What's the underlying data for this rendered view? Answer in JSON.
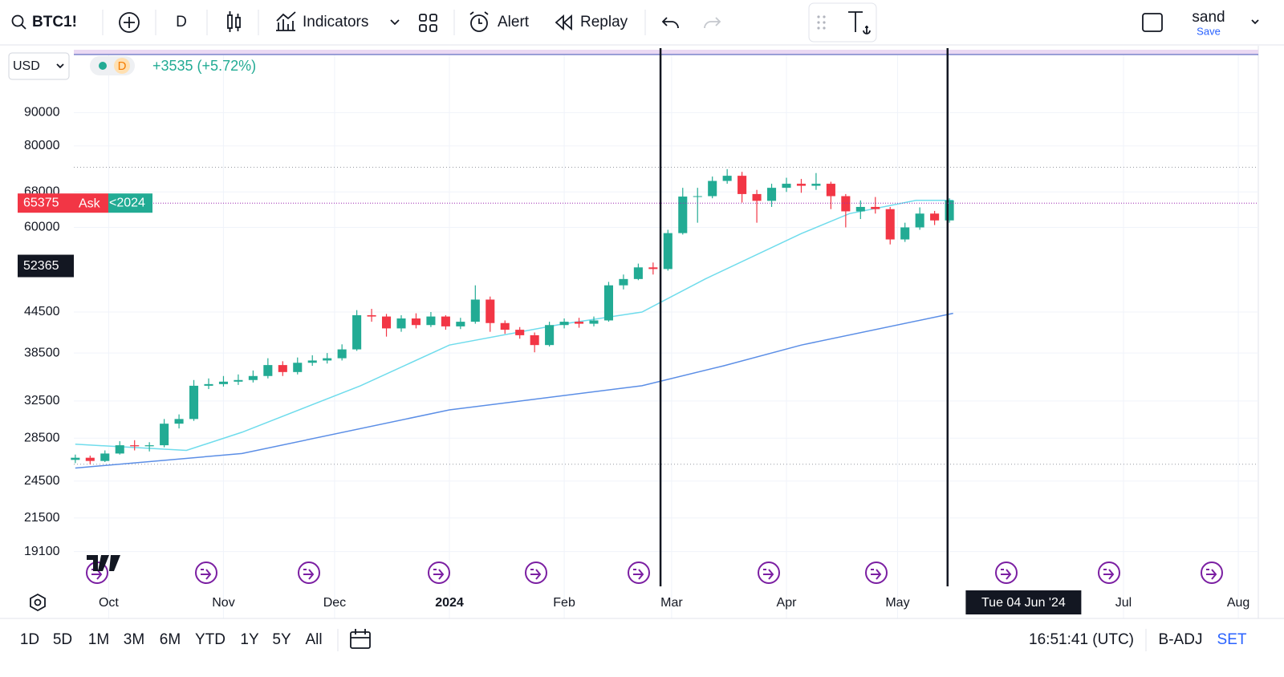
{
  "toolbar": {
    "symbol": "BTC1!",
    "interval": "D",
    "indicators": "Indicators",
    "alert": "Alert",
    "replay": "Replay",
    "user": "sand",
    "save": "Save"
  },
  "legend": {
    "currency": "USD",
    "badge": "D",
    "change": "+3535 (+5.72%)"
  },
  "chart_data": {
    "type": "candlestick",
    "log_scale": true,
    "grid": true,
    "up_color": "#22ab94",
    "down_color": "#f23645",
    "ylim": [
      16700,
      113000
    ],
    "yticks": [
      90000,
      80000,
      68000,
      60000,
      44500,
      38500,
      32500,
      28500,
      24500,
      21500,
      19100
    ],
    "xlim": [
      -0.4,
      319.4
    ],
    "xticks": [
      {
        "value": 9,
        "label": "Oct"
      },
      {
        "value": 40,
        "label": "Nov"
      },
      {
        "value": 70,
        "label": "Dec"
      },
      {
        "value": 101,
        "label": "2024"
      },
      {
        "value": 132,
        "label": "Feb"
      },
      {
        "value": 161,
        "label": "Mar"
      },
      {
        "value": 192,
        "label": "Apr"
      },
      {
        "value": 222,
        "label": "May"
      },
      {
        "value": 283,
        "label": "Jul"
      },
      {
        "value": 314,
        "label": "Aug"
      }
    ],
    "x": [
      0,
      4,
      8,
      12,
      16,
      20,
      24,
      28,
      32,
      36,
      40,
      44,
      48,
      52,
      56,
      60,
      64,
      68,
      72,
      76,
      80,
      84,
      88,
      92,
      96,
      100,
      104,
      108,
      112,
      116,
      120,
      124,
      128,
      132,
      136,
      140,
      144,
      148,
      152,
      156,
      160,
      164,
      168,
      172,
      176,
      180,
      184,
      188,
      192,
      196,
      200,
      204,
      208,
      212,
      216,
      220,
      224,
      228,
      232,
      236
    ],
    "ohlc": [
      [
        26400,
        26900,
        26100,
        26600
      ],
      [
        26600,
        26800,
        26000,
        26300
      ],
      [
        26300,
        27300,
        26200,
        27000
      ],
      [
        27000,
        28200,
        26900,
        27800
      ],
      [
        27800,
        28300,
        27300,
        27700
      ],
      [
        27700,
        28100,
        27200,
        27800
      ],
      [
        27800,
        30500,
        27600,
        30000
      ],
      [
        30000,
        31000,
        29500,
        30500
      ],
      [
        30500,
        35000,
        30300,
        34300
      ],
      [
        34300,
        35200,
        33900,
        34500
      ],
      [
        34500,
        35500,
        34200,
        34800
      ],
      [
        34800,
        35700,
        34400,
        35000
      ],
      [
        35000,
        36200,
        34700,
        35500
      ],
      [
        35500,
        37800,
        35200,
        36900
      ],
      [
        36900,
        37400,
        35500,
        36000
      ],
      [
        36000,
        37900,
        35700,
        37200
      ],
      [
        37200,
        38200,
        36800,
        37500
      ],
      [
        37500,
        38500,
        37100,
        37800
      ],
      [
        37800,
        39700,
        37500,
        39000
      ],
      [
        39000,
        44800,
        38800,
        44000
      ],
      [
        44000,
        45000,
        43000,
        43800
      ],
      [
        43800,
        44200,
        40800,
        42000
      ],
      [
        42000,
        44000,
        41500,
        43500
      ],
      [
        43500,
        44300,
        42000,
        42500
      ],
      [
        42500,
        44500,
        42200,
        43800
      ],
      [
        43800,
        44000,
        41800,
        42300
      ],
      [
        42300,
        43600,
        41900,
        43000
      ],
      [
        43000,
        48900,
        42700,
        46500
      ],
      [
        46500,
        47000,
        41500,
        42800
      ],
      [
        42800,
        43200,
        41200,
        41800
      ],
      [
        41800,
        42200,
        40500,
        41000
      ],
      [
        41000,
        41400,
        38600,
        39600
      ],
      [
        39600,
        43000,
        39400,
        42500
      ],
      [
        42500,
        43500,
        42000,
        43000
      ],
      [
        43000,
        43600,
        42100,
        42700
      ],
      [
        42700,
        43800,
        42300,
        43200
      ],
      [
        43200,
        49500,
        43000,
        48900
      ],
      [
        48900,
        50800,
        48200,
        50000
      ],
      [
        50000,
        52800,
        49800,
        52100
      ],
      [
        52100,
        53000,
        50800,
        51800
      ],
      [
        51800,
        59500,
        51500,
        58800
      ],
      [
        58800,
        69000,
        58500,
        66900
      ],
      [
        66900,
        69000,
        61000,
        67000
      ],
      [
        67000,
        71800,
        66500,
        70700
      ],
      [
        70700,
        73700,
        70000,
        72000
      ],
      [
        72000,
        73000,
        65500,
        67500
      ],
      [
        67500,
        68500,
        61000,
        65900
      ],
      [
        65900,
        70000,
        64500,
        69000
      ],
      [
        69000,
        71500,
        68000,
        70000
      ],
      [
        70000,
        71200,
        67800,
        69500
      ],
      [
        69500,
        72700,
        68500,
        70000
      ],
      [
        70000,
        70500,
        64000,
        67000
      ],
      [
        67000,
        67500,
        60000,
        63500
      ],
      [
        63500,
        66000,
        61800,
        64500
      ],
      [
        64500,
        66800,
        63000,
        64000
      ],
      [
        64000,
        64500,
        56500,
        57500
      ],
      [
        57500,
        61000,
        57000,
        60000
      ],
      [
        60000,
        64400,
        59500,
        63000
      ],
      [
        63000,
        63600,
        60500,
        61500
      ],
      [
        61500,
        66500,
        61000,
        66000
      ]
    ],
    "series": [
      {
        "color": "#6fdcec",
        "x": [
          0,
          30,
          45,
          77,
          101,
          131,
          153,
          170,
          196,
          209,
          227,
          237
        ],
        "values": [
          27900,
          27300,
          29100,
          34300,
          39600,
          42600,
          44500,
          50000,
          58700,
          63000,
          66000,
          66000
        ]
      },
      {
        "color": "#5b8ee6",
        "x": [
          0,
          45,
          101,
          153,
          175,
          196,
          237
        ],
        "values": [
          25650,
          27000,
          31500,
          34300,
          36800,
          39600,
          44300
        ]
      }
    ],
    "price_line": 65375,
    "price_color": "#f23645",
    "ask_label": "Ask",
    "tag_label": "<2024",
    "cursor_price": 52365,
    "hlines": [
      74200,
      26000
    ],
    "vlines": [
      158,
      235.5
    ],
    "crosshair": {
      "x": 256,
      "label": "Tue 04 Jun '24"
    }
  },
  "ranges": [
    "1D",
    "5D",
    "1M",
    "3M",
    "6M",
    "YTD",
    "1Y",
    "5Y",
    "All"
  ],
  "status": {
    "time": "16:51:41 (UTC)",
    "adjust": "B-ADJ",
    "settings": "SET"
  }
}
